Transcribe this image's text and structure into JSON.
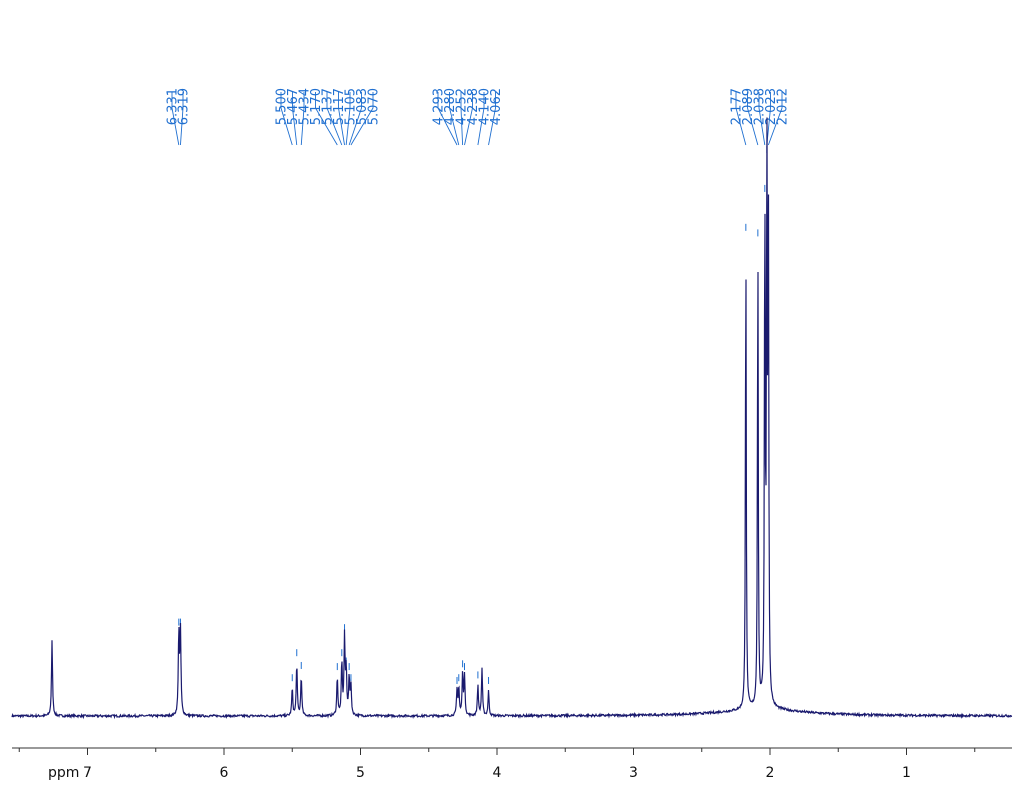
{
  "chart_data": {
    "type": "line",
    "title": "",
    "xlabel": "ppm",
    "ylabel": "",
    "x_reversed": true,
    "xlim": [
      7.55,
      0.25
    ],
    "x_ticks": [
      7,
      6,
      5,
      4,
      3,
      2,
      1
    ],
    "x_tick_labels": [
      "7",
      "6",
      "5",
      "4",
      "3",
      "2",
      "1"
    ],
    "axis_title": "ppm",
    "colors": {
      "spectrum": "#1a1a6e",
      "labels": "#1f6fd0",
      "axis": "#333333"
    },
    "peaks": [
      {
        "ppm": 7.26,
        "height": 0.135
      },
      {
        "ppm": 6.331,
        "height": 0.15
      },
      {
        "ppm": 6.319,
        "height": 0.15
      },
      {
        "ppm": 5.5,
        "height": 0.05
      },
      {
        "ppm": 5.467,
        "height": 0.095
      },
      {
        "ppm": 5.434,
        "height": 0.072
      },
      {
        "ppm": 5.17,
        "height": 0.07
      },
      {
        "ppm": 5.137,
        "height": 0.095
      },
      {
        "ppm": 5.117,
        "height": 0.14
      },
      {
        "ppm": 5.105,
        "height": 0.08
      },
      {
        "ppm": 5.083,
        "height": 0.07
      },
      {
        "ppm": 5.07,
        "height": 0.05
      },
      {
        "ppm": 4.293,
        "height": 0.045
      },
      {
        "ppm": 4.28,
        "height": 0.05
      },
      {
        "ppm": 4.252,
        "height": 0.075
      },
      {
        "ppm": 4.238,
        "height": 0.07
      },
      {
        "ppm": 4.14,
        "height": 0.055
      },
      {
        "ppm": 4.11,
        "height": 0.085
      },
      {
        "ppm": 4.062,
        "height": 0.045
      },
      {
        "ppm": 2.177,
        "height": 0.86
      },
      {
        "ppm": 2.089,
        "height": 0.85
      },
      {
        "ppm": 2.038,
        "height": 0.93
      },
      {
        "ppm": 2.023,
        "height": 1.0
      },
      {
        "ppm": 2.012,
        "height": 0.9
      }
    ],
    "peak_labels": [
      {
        "text": "6.331",
        "ppm": 6.331
      },
      {
        "text": "6.319",
        "ppm": 6.319
      },
      {
        "text": "5.500",
        "ppm": 5.5
      },
      {
        "text": "5.467",
        "ppm": 5.467
      },
      {
        "text": "5.434",
        "ppm": 5.434
      },
      {
        "text": "5.170",
        "ppm": 5.17
      },
      {
        "text": "5.137",
        "ppm": 5.137
      },
      {
        "text": "5.117",
        "ppm": 5.117
      },
      {
        "text": "5.105",
        "ppm": 5.105
      },
      {
        "text": "5.083",
        "ppm": 5.083
      },
      {
        "text": "5.070",
        "ppm": 5.07
      },
      {
        "text": "4.293",
        "ppm": 4.293
      },
      {
        "text": "4.280",
        "ppm": 4.28
      },
      {
        "text": "4.252",
        "ppm": 4.252
      },
      {
        "text": "4.238",
        "ppm": 4.238
      },
      {
        "text": "4.140",
        "ppm": 4.14
      },
      {
        "text": "4.062",
        "ppm": 4.062
      },
      {
        "text": "2.177",
        "ppm": 2.177
      },
      {
        "text": "2.089",
        "ppm": 2.089
      },
      {
        "text": "2.038",
        "ppm": 2.038
      },
      {
        "text": "2.023",
        "ppm": 2.023
      },
      {
        "text": "2.012",
        "ppm": 2.012
      }
    ]
  }
}
